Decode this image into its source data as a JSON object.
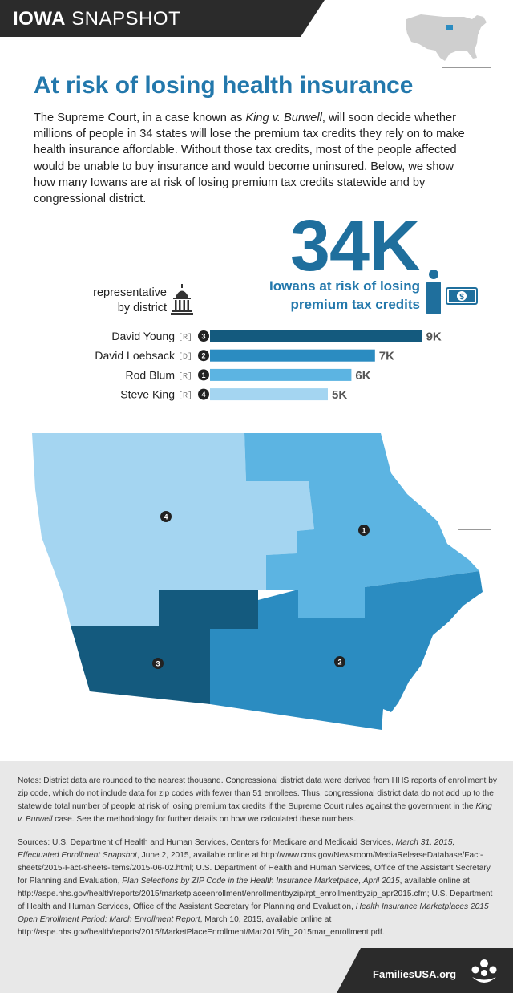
{
  "header": {
    "title_bold": "IOWA",
    "title_rest": "SNAPSHOT"
  },
  "article": {
    "title": "At risk of losing health insurance",
    "intro_part1": "The Supreme Court, in a case known as ",
    "intro_case": "King v. Burwell",
    "intro_part2": ", will soon decide whether millions of people in 34 states will lose the premium tax credits they rely on to make health insurance affordable. Without those tax credits, most of the people affected would be unable to buy insurance and would become uninsured. Below, we show how many Iowans are at risk of losing premium tax credits statewide and by congressional district."
  },
  "statewide": {
    "value": "34K",
    "caption_line1": "Iowans at risk of losing",
    "caption_line2": "premium tax credits"
  },
  "rep_label_line1": "representative",
  "rep_label_line2": "by district",
  "colors": {
    "d3": "#145a7e",
    "d2": "#2b8cc1",
    "d1": "#5cb4e2",
    "d4": "#a4d5f1",
    "title": "#2378ac"
  },
  "icons": [
    "us-map-icon",
    "person-icon",
    "dollar-bill-icon",
    "capitol-icon",
    "familiesusa-logo-icon"
  ],
  "chart_data": {
    "type": "bar",
    "categories": [
      "David Young",
      "David Loebsack",
      "Rod Blum",
      "Steve King"
    ],
    "parties": [
      "[R]",
      "[D]",
      "[R]",
      "[R]"
    ],
    "districts": [
      "3",
      "2",
      "1",
      "4"
    ],
    "values": [
      9,
      7,
      6,
      5
    ],
    "value_labels": [
      "9K",
      "7K",
      "6K",
      "5K"
    ],
    "colors": [
      "#145a7e",
      "#2b8cc1",
      "#5cb4e2",
      "#a4d5f1"
    ],
    "unit": "thousands of Iowans"
  },
  "map_labels": [
    "4",
    "1",
    "3",
    "2"
  ],
  "notes": {
    "text_part1": "Notes: District data are rounded to the nearest thousand. Congressional district data were derived from HHS reports of enrollment by zip code, which do not include data for zip codes with fewer than 51 enrollees. Thus, congressional district data do not add up to the statewide total number of people at risk of losing premium tax credits if the Supreme Court rules against the government in the ",
    "text_case": "King v. Burwell",
    "text_part2": " case. See the methodology for further details on how we calculated these numbers."
  },
  "sources": {
    "s1": "Sources: U.S. Department of Health and Human Services, Centers for Medicare and Medicaid Services, ",
    "s1_em": "March 31, 2015, Effectuated Enrollment Snapshot",
    "s2": ", June 2, 2015, available online at http://www.cms.gov/Newsroom/MediaReleaseDatabase/Fact-sheets/2015-Fact-sheets-items/2015-06-02.html; U.S. Department of Health and Human Services, Office of the Assistant Secretary for Planning and Evaluation, ",
    "s2_em": "Plan Selections by ZIP Code in the Health Insurance Marketplace, April 2015",
    "s3": ", available online at http://aspe.hhs.gov/health/reports/2015/marketplaceenrollment/enrollmentbyzip/rpt_enrollmentbyzip_apr2015.cfm; U.S. Department of Health and Human Services, Office of the Assistant Secretary for Planning and Evaluation, ",
    "s3_em": "Health Insurance Marketplaces 2015 Open Enrollment Period: March Enrollment Report",
    "s4": ", March 10, 2015, available online at http://aspe.hhs.gov/health/reports/2015/MarketPlaceEnrollment/Mar2015/ib_2015mar_enrollment.pdf."
  },
  "footer": {
    "brand": "FamiliesUSA.org"
  }
}
